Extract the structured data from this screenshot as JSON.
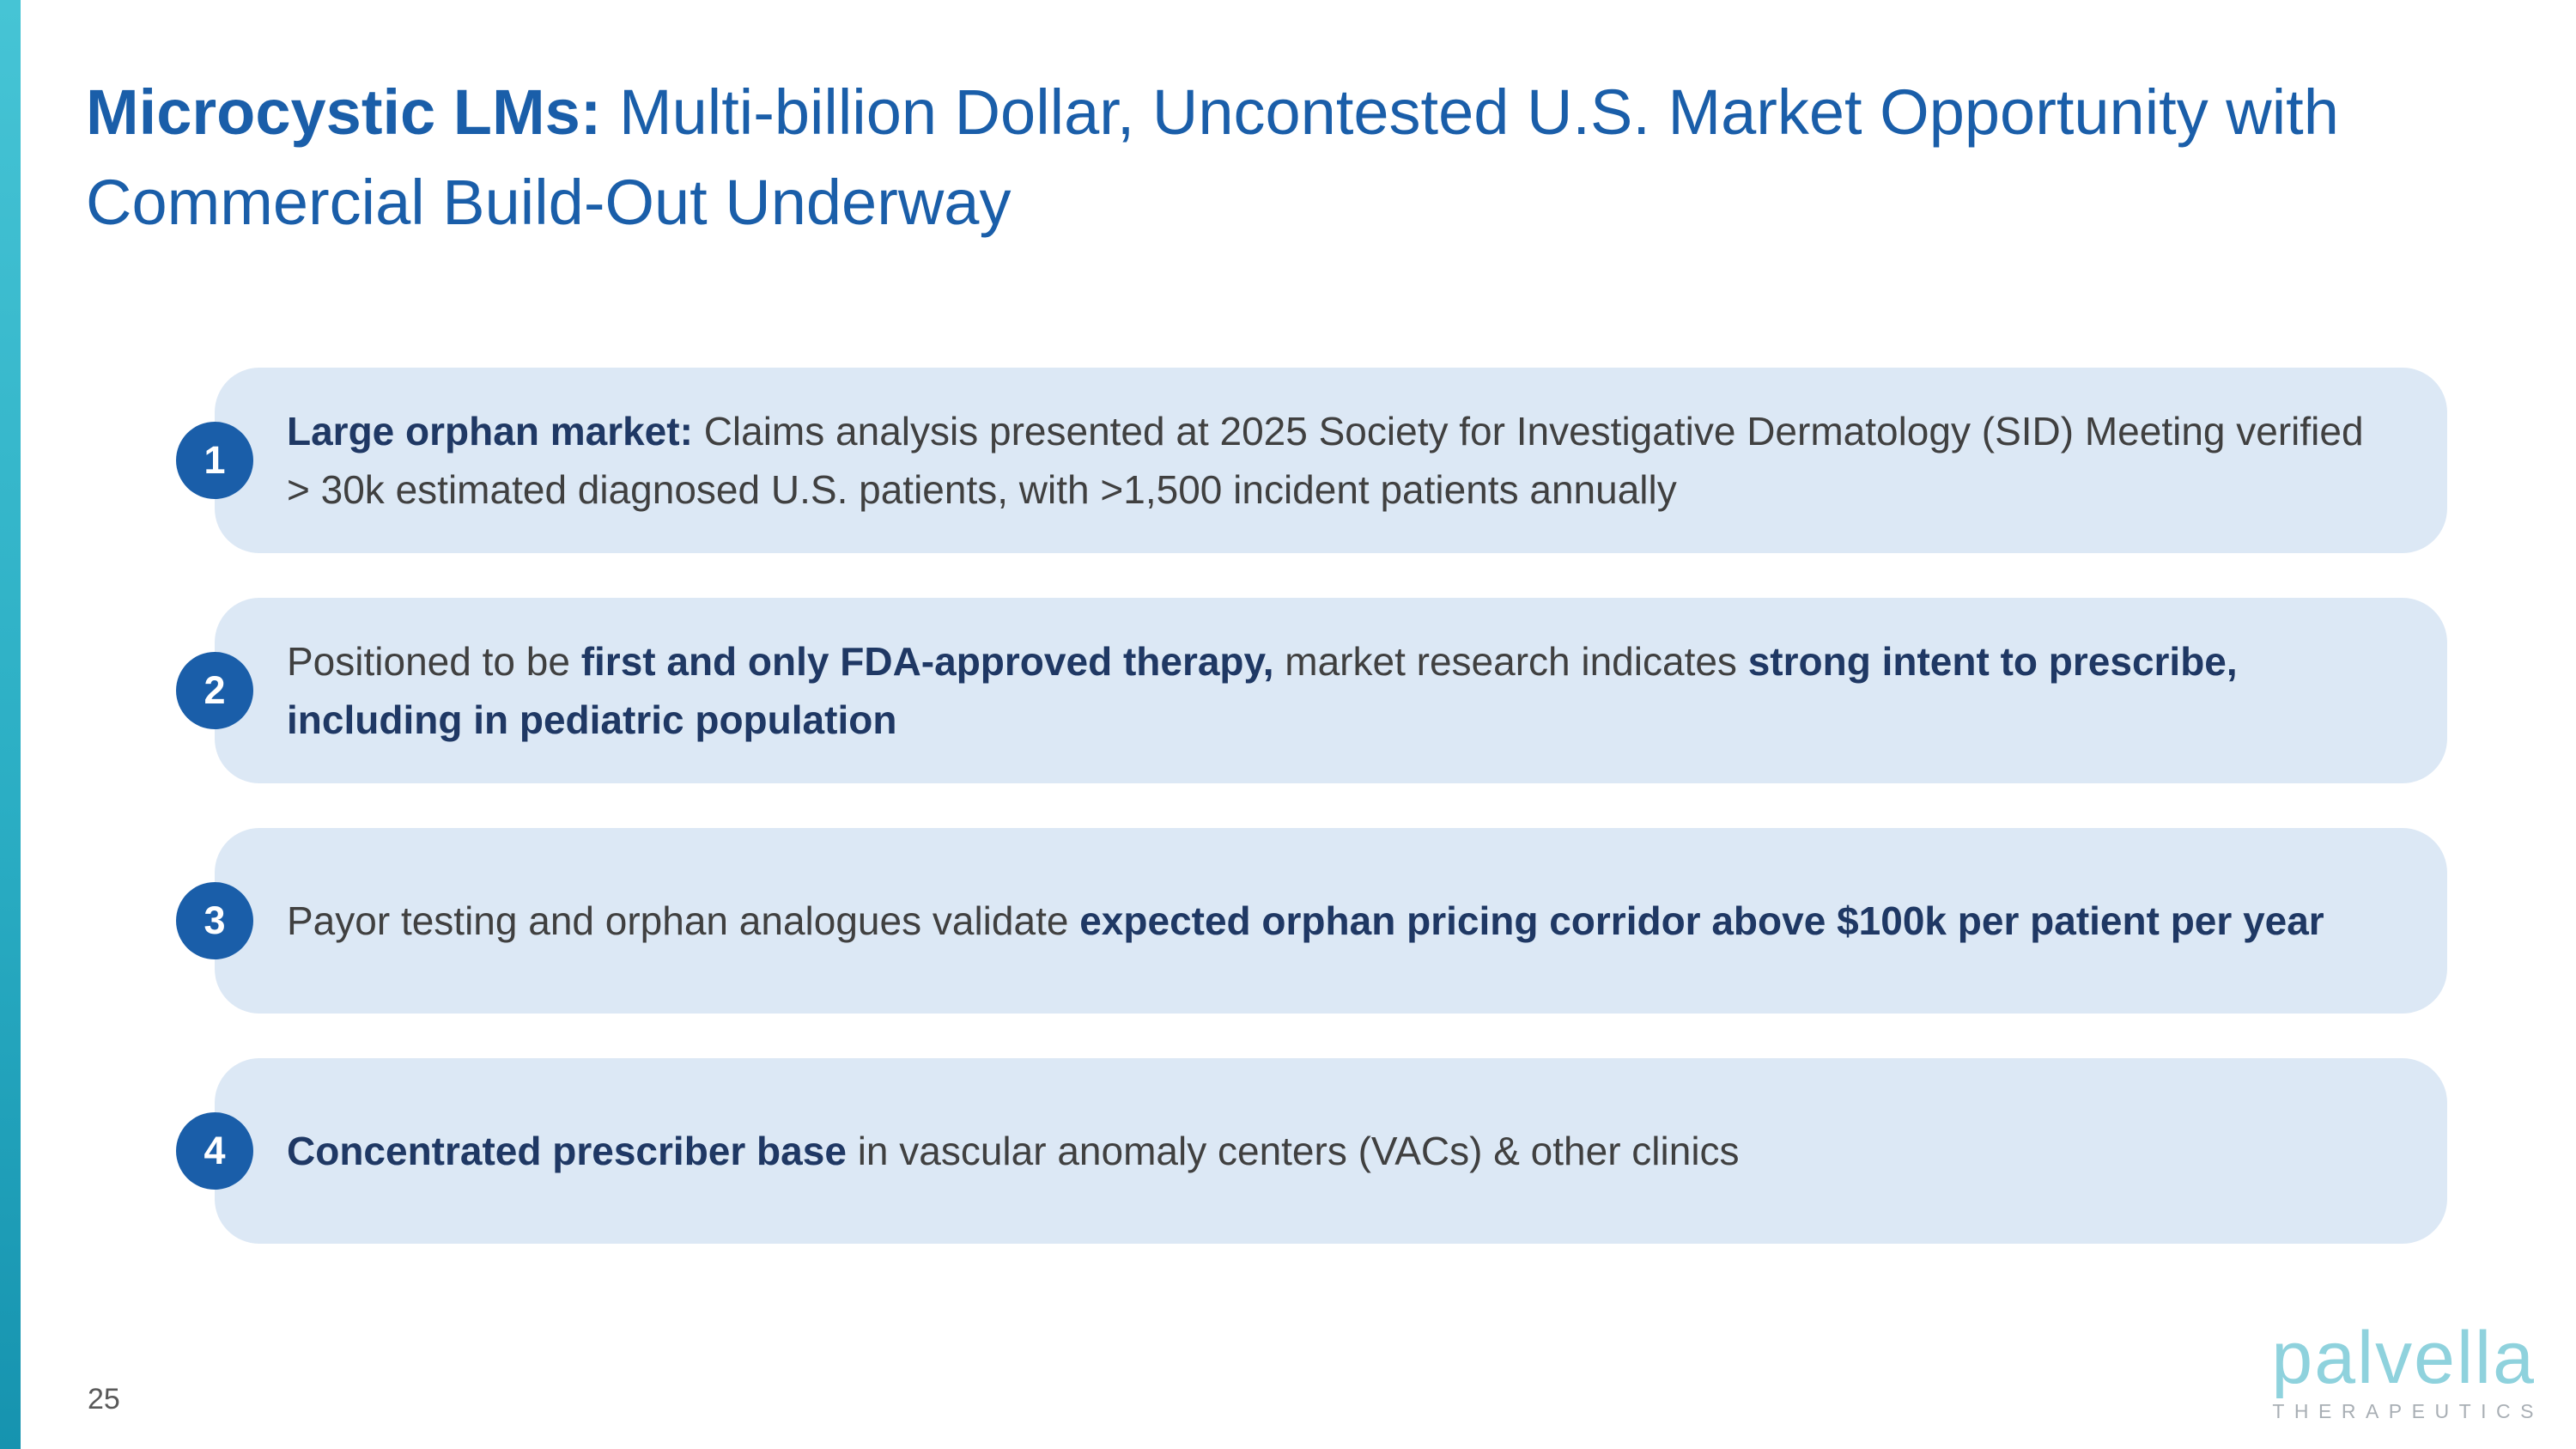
{
  "title": {
    "lead": "Microcystic LMs:",
    "rest": " Multi-billion Dollar, Uncontested U.S. Market Opportunity with Commercial Build-Out Underway"
  },
  "items": [
    {
      "number": "1",
      "segments": [
        {
          "text": "Large orphan market: ",
          "bold": true
        },
        {
          "text": "Claims analysis presented at 2025 Society for Investigative Dermatology (SID) Meeting verified > 30k estimated diagnosed U.S. patients, with >1,500 incident patients annually",
          "bold": false
        }
      ]
    },
    {
      "number": "2",
      "segments": [
        {
          "text": "Positioned to be ",
          "bold": false
        },
        {
          "text": "first and only FDA-approved therapy,",
          "bold": true
        },
        {
          "text": " market research indicates ",
          "bold": false
        },
        {
          "text": "strong intent to prescribe, including in pediatric population",
          "bold": true
        }
      ]
    },
    {
      "number": "3",
      "segments": [
        {
          "text": "Payor testing and orphan analogues validate ",
          "bold": false
        },
        {
          "text": "expected orphan pricing corridor above $100k per patient per year",
          "bold": true
        }
      ]
    },
    {
      "number": "4",
      "segments": [
        {
          "text": "Concentrated prescriber base ",
          "bold": true
        },
        {
          "text": "in vascular anomaly centers (VACs) & other clinics",
          "bold": false
        }
      ]
    }
  ],
  "footer": {
    "page_number": "25",
    "logo": {
      "brand": "palvella",
      "subtitle": "THERAPEUTICS"
    }
  },
  "colors": {
    "title_blue": "#1A5EA9",
    "card_bg": "#DCE8F5",
    "badge_blue": "#1A5EA9",
    "bold_navy": "#1F3864",
    "body_gray": "#404040",
    "accent_teal": "#35B8CB",
    "logo_teal": "#8FD2DD",
    "footer_gray": "#595959"
  }
}
